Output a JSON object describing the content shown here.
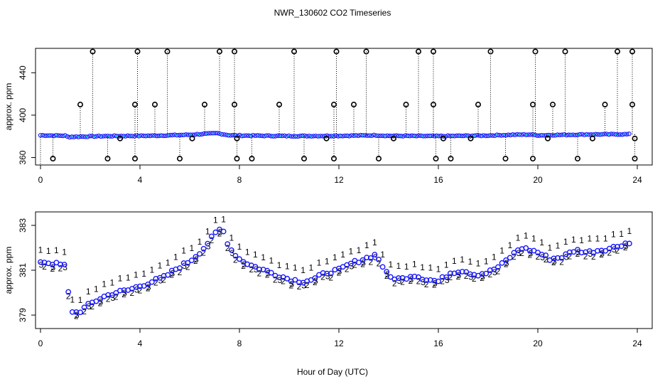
{
  "chart_data": {
    "title": "NWR_130602  CO2 Timeseries",
    "xlabel": "Hour of Day (UTC)",
    "panels": [
      {
        "name": "top",
        "type": "scatter",
        "ylabel": "approx. ppm",
        "xlim": [
          -0.2,
          24.6
        ],
        "ylim": [
          353,
          463
        ],
        "xticks": [
          0,
          4,
          8,
          12,
          16,
          20,
          24
        ],
        "yticks": [
          360,
          400,
          440
        ],
        "series": [
          {
            "name": "hourly-mean-symbols",
            "symbol": "o",
            "color": "#000000"
          },
          {
            "name": "co2-series-blue",
            "symbol": "o",
            "color": "#1c1cff"
          },
          {
            "name": "co2-series-cyan",
            "symbol": "dot",
            "color": "#00c8d2"
          }
        ],
        "baseline": [
          [
            0,
            381
          ],
          [
            1.0,
            380.6
          ],
          [
            1.1,
            379.5
          ],
          [
            2.5,
            380.2
          ],
          [
            4.5,
            380.6
          ],
          [
            6.0,
            381.5
          ],
          [
            7.1,
            383
          ],
          [
            7.6,
            381
          ],
          [
            8.0,
            380.8
          ],
          [
            10,
            380.3
          ],
          [
            12,
            380.5
          ],
          [
            13.5,
            381
          ],
          [
            14,
            380.5
          ],
          [
            16,
            380.2
          ],
          [
            18,
            380.8
          ],
          [
            19,
            381.5
          ],
          [
            19.7,
            381.7
          ],
          [
            20,
            381
          ],
          [
            22,
            381.8
          ],
          [
            23.7,
            382
          ]
        ],
        "spikes_high": [
          2.1,
          3.9,
          5.1,
          7.2,
          7.8,
          10.2,
          11.9,
          13.1,
          15.2,
          15.8,
          18.1,
          19.9,
          21.1,
          23.2,
          23.8
        ],
        "spikes_high_value": 460,
        "spikes_mid": [
          1.6,
          3.8,
          4.6,
          6.6,
          7.8,
          9.6,
          11.8,
          12.6,
          14.7,
          15.8,
          17.6,
          19.8,
          20.6,
          22.7,
          23.8
        ],
        "spikes_mid_value": 410,
        "spikes_low": [
          0.5,
          2.7,
          3.8,
          5.6,
          7.9,
          8.5,
          10.6,
          11.8,
          13.6,
          15.9,
          16.5,
          18.7,
          19.8,
          21.6,
          23.9
        ],
        "spikes_low_value": 359,
        "dips_small": [
          3.2,
          6.1,
          7.9,
          11.5,
          14.2,
          16.2,
          17.3,
          20.4,
          22.2,
          23.9
        ],
        "dips_small_value": 378
      },
      {
        "name": "bottom",
        "type": "scatter",
        "ylabel": "approx. ppm",
        "xlim": [
          -0.2,
          24.6
        ],
        "ylim": [
          378.4,
          383.6
        ],
        "xticks": [
          0,
          4,
          8,
          12,
          16,
          20,
          24
        ],
        "yticks": [
          379,
          381,
          383
        ],
        "series": [
          {
            "name": "1",
            "symbol": "1",
            "color": "#ee0000",
            "offset": 0.42
          },
          {
            "name": "2",
            "symbol": "2",
            "color": "#22bb22",
            "offset": -0.12
          },
          {
            "name": "3",
            "symbol": "3",
            "color": "#1515ff",
            "offset": 0.0
          },
          {
            "name": "o",
            "symbol": "o",
            "color": "#1515ff",
            "offset": 0.0
          }
        ],
        "base_curve": [
          [
            0,
            381.4
          ],
          [
            0.5,
            381.3
          ],
          [
            1.0,
            381.2
          ],
          [
            1.2,
            379.2
          ],
          [
            1.5,
            379.1
          ],
          [
            2.0,
            379.5
          ],
          [
            2.5,
            379.8
          ],
          [
            3.0,
            380.0
          ],
          [
            3.5,
            380.1
          ],
          [
            4.0,
            380.3
          ],
          [
            4.5,
            380.5
          ],
          [
            5.0,
            380.7
          ],
          [
            5.5,
            381.1
          ],
          [
            6.0,
            381.4
          ],
          [
            6.5,
            381.9
          ],
          [
            7.0,
            382.6
          ],
          [
            7.3,
            382.9
          ],
          [
            7.6,
            382.0
          ],
          [
            8.0,
            381.5
          ],
          [
            8.5,
            381.2
          ],
          [
            9.0,
            381.0
          ],
          [
            9.5,
            380.8
          ],
          [
            10.0,
            380.6
          ],
          [
            10.5,
            380.5
          ],
          [
            11.0,
            380.6
          ],
          [
            11.5,
            380.9
          ],
          [
            12.0,
            381.0
          ],
          [
            12.5,
            381.3
          ],
          [
            13.0,
            381.5
          ],
          [
            13.5,
            381.7
          ],
          [
            14.0,
            380.7
          ],
          [
            14.5,
            380.6
          ],
          [
            15.0,
            380.8
          ],
          [
            15.5,
            380.6
          ],
          [
            16.0,
            380.5
          ],
          [
            16.5,
            380.9
          ],
          [
            17.0,
            381.0
          ],
          [
            17.5,
            380.8
          ],
          [
            18.0,
            380.9
          ],
          [
            18.5,
            381.2
          ],
          [
            19.0,
            381.7
          ],
          [
            19.3,
            382.0
          ],
          [
            19.7,
            381.9
          ],
          [
            20.0,
            381.8
          ],
          [
            20.5,
            381.5
          ],
          [
            21.0,
            381.6
          ],
          [
            21.5,
            381.9
          ],
          [
            22.0,
            381.8
          ],
          [
            22.5,
            381.9
          ],
          [
            23.0,
            382.0
          ],
          [
            23.5,
            382.2
          ],
          [
            23.7,
            382.2
          ]
        ]
      }
    ]
  }
}
